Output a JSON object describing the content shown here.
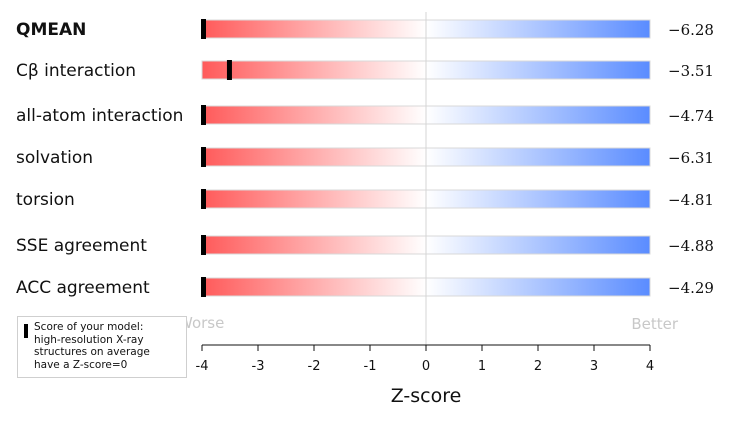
{
  "chart_data": {
    "type": "bar",
    "categories": [
      "QMEAN",
      "Cβ interaction",
      "all-atom interaction",
      "solvation",
      "torsion",
      "SSE agreement",
      "ACC agreement"
    ],
    "values": [
      -6.28,
      -3.51,
      -4.74,
      -6.31,
      -4.81,
      -4.88,
      -4.29
    ],
    "value_labels": [
      "−6.28",
      "−3.51",
      "−4.74",
      "−6.31",
      "−4.81",
      "−4.88",
      "−4.29"
    ],
    "bold_category": "QMEAN",
    "xlabel": "Z-score",
    "xlim": [
      -4,
      4
    ],
    "xticks": [
      -4,
      -3,
      -2,
      -1,
      0,
      1,
      2,
      3,
      4
    ],
    "left_hint": "Worse",
    "right_hint": "Better",
    "colors": {
      "worse": "#ff5a5a",
      "neutral": "#ffffff",
      "better": "#5a8cff",
      "marker": "#000000"
    },
    "reference_line": 0,
    "legend": {
      "lines": [
        "Score of your model:",
        "high-resolution X-ray",
        "structures on average",
        "have a Z-score=0"
      ]
    }
  }
}
